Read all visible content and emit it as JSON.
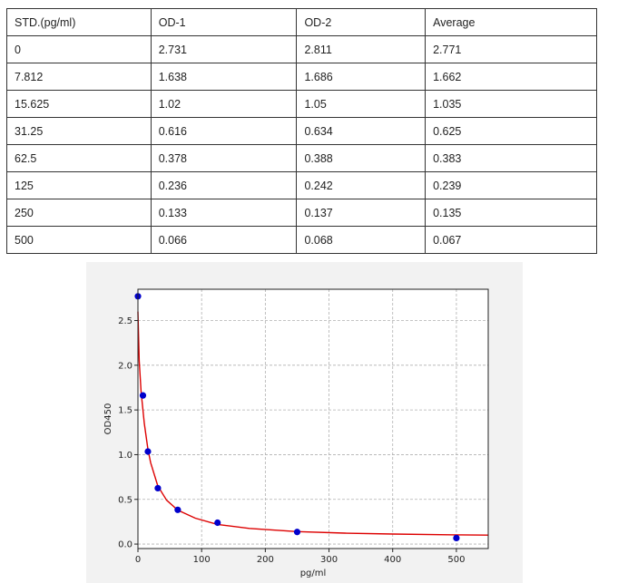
{
  "table": {
    "headers": [
      "STD.(pg/ml)",
      "OD-1",
      "OD-2",
      "Average"
    ],
    "rows": [
      [
        "0",
        "2.731",
        "2.811",
        "2.771"
      ],
      [
        "7.812",
        "1.638",
        "1.686",
        "1.662"
      ],
      [
        "15.625",
        "1.02",
        "1.05",
        "1.035"
      ],
      [
        "31.25",
        "0.616",
        "0.634",
        "0.625"
      ],
      [
        "62.5",
        "0.378",
        "0.388",
        "0.383"
      ],
      [
        "125",
        "0.236",
        "0.242",
        "0.239"
      ],
      [
        "250",
        "0.133",
        "0.137",
        "0.135"
      ],
      [
        "500",
        "0.066",
        "0.068",
        "0.067"
      ]
    ]
  },
  "chart_data": {
    "type": "scatter",
    "xlabel": "pg/ml",
    "ylabel": "OD450",
    "xlim": [
      0,
      550
    ],
    "ylim": [
      -0.05,
      2.85
    ],
    "xticks": [
      0,
      100,
      200,
      300,
      400,
      500
    ],
    "yticks": [
      0.0,
      0.5,
      1.0,
      1.5,
      2.0,
      2.5
    ],
    "ytick_labels": [
      "0.0",
      "0.5",
      "1.0",
      "1.5",
      "2.0",
      "2.5"
    ],
    "grid": true,
    "series": [
      {
        "kind": "points",
        "color": "#0000cc",
        "x": [
          0,
          7.812,
          15.625,
          31.25,
          62.5,
          125,
          250,
          500
        ],
        "y": [
          2.771,
          1.662,
          1.035,
          0.625,
          0.383,
          0.239,
          0.135,
          0.067
        ]
      },
      {
        "kind": "fit-curve",
        "color": "#dd0000",
        "x": [
          0,
          2,
          5,
          7.812,
          10,
          15.625,
          20,
          31.25,
          45,
          62.5,
          90,
          125,
          175,
          250,
          325,
          400,
          500,
          550
        ],
        "y": [
          2.6,
          2.05,
          1.7,
          1.5,
          1.35,
          1.06,
          0.91,
          0.65,
          0.49,
          0.38,
          0.29,
          0.22,
          0.175,
          0.14,
          0.122,
          0.112,
          0.103,
          0.1
        ]
      }
    ]
  }
}
